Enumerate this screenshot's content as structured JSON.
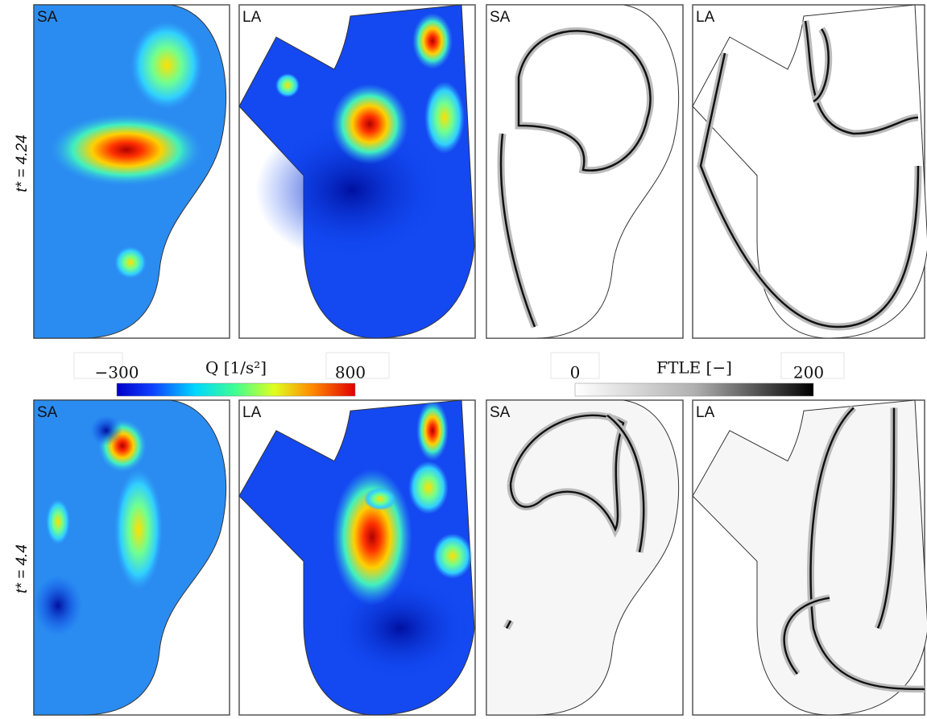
{
  "rows": [
    {
      "label": "t* = 4.24",
      "panels": [
        "SA",
        "LA",
        "SA",
        "LA"
      ]
    },
    {
      "label": "t* = 4.4",
      "panels": [
        "SA",
        "LA",
        "SA",
        "LA"
      ]
    }
  ],
  "colorbars": [
    {
      "title": "Q [1/s²]",
      "min_label": "−300",
      "max_label": "800"
    },
    {
      "title": "FTLE [−]",
      "min_label": "0",
      "max_label": "200"
    }
  ]
}
